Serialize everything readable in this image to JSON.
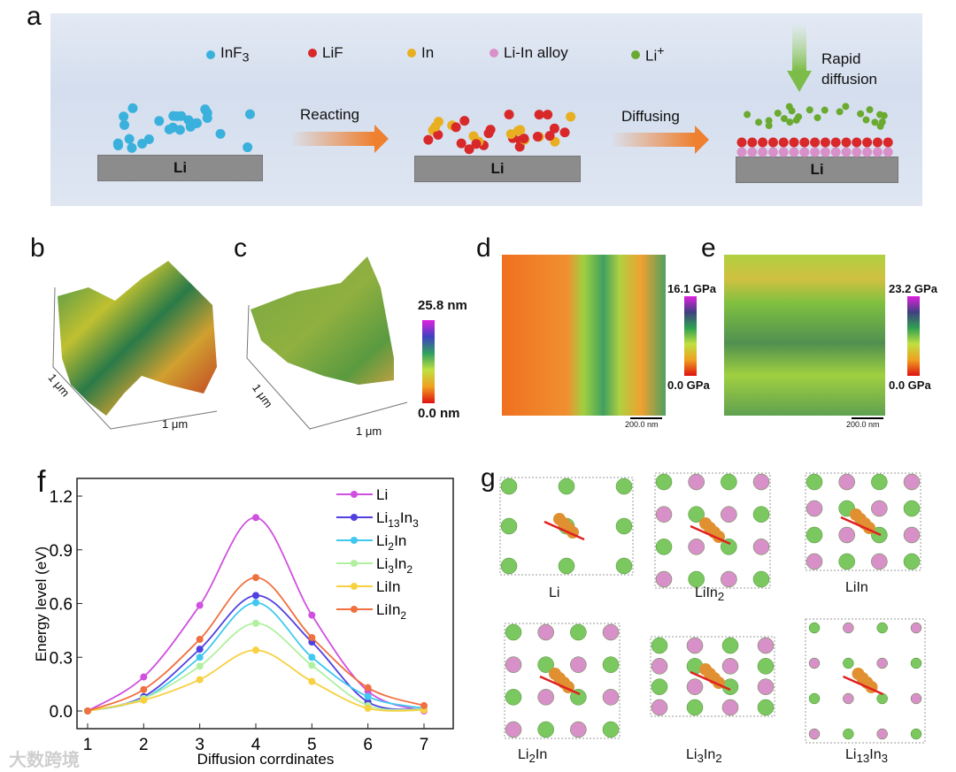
{
  "panel_a": {
    "label": "a",
    "legend": [
      {
        "name": "InF",
        "sub": "3",
        "color": "#3ab0dc"
      },
      {
        "name": "LiF",
        "sub": "",
        "color": "#d8282a"
      },
      {
        "name": "In",
        "sub": "",
        "color": "#e8b020"
      },
      {
        "name": "Li-In alloy",
        "sub": "",
        "color": "#d890c8"
      },
      {
        "name": "Li",
        "sup": "+",
        "color": "#6aaa30"
      }
    ],
    "step1": "Reacting",
    "step2": "Diffusing",
    "substrate": "Li",
    "rapid": [
      "Rapid",
      "diffusion"
    ]
  },
  "panel_b": {
    "label": "b",
    "ax1": "1 μm",
    "ax2": "1 μm"
  },
  "panel_c": {
    "label": "c",
    "ax1": "1 μm",
    "ax2": "1 μm",
    "cbar_max": "25.8 nm",
    "cbar_min": "0.0 nm"
  },
  "panel_d": {
    "label": "d",
    "cbar_max": "16.1 GPa",
    "cbar_min": "0.0 GPa",
    "scale": "200.0 nm"
  },
  "panel_e": {
    "label": "e",
    "cbar_max": "23.2 GPa",
    "cbar_min": "0.0 GPa",
    "scale": "200.0 nm"
  },
  "chart_data": {
    "type": "line",
    "label": "f",
    "xlabel": "Diffusion corrdinates",
    "ylabel": "Energy level (eV)",
    "x": [
      1,
      2,
      3,
      4,
      5,
      6,
      7
    ],
    "xlim": [
      0.9,
      7.5
    ],
    "ylim": [
      -0.1,
      1.3
    ],
    "xticks": [
      "1",
      "2",
      "3",
      "4",
      "5",
      "6",
      "7"
    ],
    "yticks": [
      "0.0",
      "0.3",
      "0.6",
      "0.9",
      "1.2"
    ],
    "ytick_values": [
      0,
      0.3,
      0.6,
      0.9,
      1.2
    ],
    "legend_position": "top-right",
    "series": [
      {
        "name": "Li",
        "sub": "",
        "color": "#d050e0",
        "values": [
          0,
          0.19,
          0.59,
          1.08,
          0.535,
          0.11,
          0.0
        ]
      },
      {
        "name": "Li",
        "sub": "13",
        "name2": "In",
        "sub2": "3",
        "color": "#5040e0",
        "values": [
          0,
          0.08,
          0.345,
          0.645,
          0.385,
          0.05,
          0.01
        ]
      },
      {
        "name": "Li",
        "sub": "2",
        "name2": "In",
        "sub2": "",
        "color": "#40c8f0",
        "values": [
          0,
          0.07,
          0.3,
          0.605,
          0.3,
          0.08,
          0.015
        ]
      },
      {
        "name": "Li",
        "sub": "3",
        "name2": "In",
        "sub2": "2",
        "color": "#b0f0a0",
        "values": [
          0,
          0.07,
          0.25,
          0.49,
          0.255,
          0.03,
          0.01
        ]
      },
      {
        "name": "LiIn",
        "sub": "",
        "color": "#f8d040",
        "values": [
          0,
          0.06,
          0.175,
          0.34,
          0.165,
          0.015,
          0.005
        ]
      },
      {
        "name": "LiIn",
        "sub": "2",
        "color": "#f07040",
        "values": [
          0,
          0.12,
          0.4,
          0.745,
          0.41,
          0.13,
          0.03
        ]
      }
    ]
  },
  "panel_g": {
    "label": "g",
    "structures": [
      {
        "name": "Li",
        "sub": ""
      },
      {
        "name": "LiIn",
        "sub": "2"
      },
      {
        "name": "LiIn",
        "sub": ""
      },
      {
        "name": "Li",
        "sub": "2",
        "name2": "In",
        "sub2": ""
      },
      {
        "name": "Li",
        "sub": "3",
        "name2": "In",
        "sub2": "2"
      },
      {
        "name": "Li",
        "sub": "13",
        "name2": "In",
        "sub2": "3"
      }
    ]
  },
  "watermark": "大数跨境"
}
